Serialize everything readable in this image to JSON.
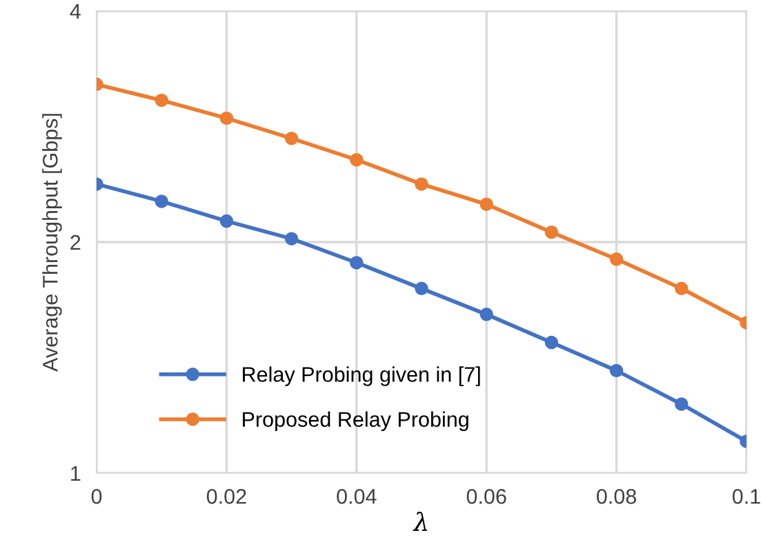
{
  "chart_data": {
    "type": "line",
    "xlabel": "λ",
    "ylabel": "Average Throughput [Gbps]",
    "x": [
      0,
      0.01,
      0.02,
      0.03,
      0.04,
      0.05,
      0.06,
      0.07,
      0.08,
      0.09,
      0.1
    ],
    "series": [
      {
        "name": "Relay Probing given in [7]",
        "color": "#4472c4",
        "values": [
          2.38,
          2.26,
          2.13,
          2.02,
          1.88,
          1.74,
          1.61,
          1.48,
          1.36,
          1.23,
          1.1
        ]
      },
      {
        "name": "Proposed Relay Probing",
        "color": "#ed7d31",
        "values": [
          3.21,
          3.06,
          2.9,
          2.73,
          2.56,
          2.38,
          2.24,
          2.06,
          1.9,
          1.74,
          1.57
        ]
      }
    ],
    "log": "y",
    "xlim": [
      0,
      0.1
    ],
    "xticks": [
      0,
      0.02,
      0.04,
      0.06,
      0.08,
      0.1
    ],
    "ylim": [
      1,
      4
    ],
    "yticks": [
      1,
      2,
      4
    ],
    "grid": true,
    "legend": "bottom left",
    "marker": "circle",
    "line_style": "solid"
  }
}
